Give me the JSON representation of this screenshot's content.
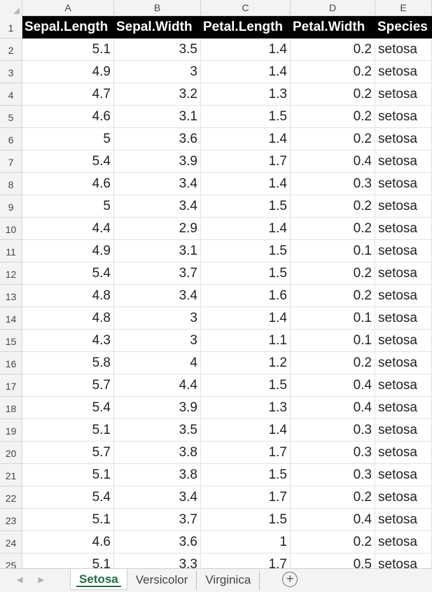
{
  "columns": [
    "A",
    "B",
    "C",
    "D",
    "E"
  ],
  "header": [
    "Sepal.Length",
    "Sepal.Width",
    "Petal.Length",
    "Petal.Width",
    "Species"
  ],
  "rows": [
    {
      "n": "2",
      "v": [
        "5.1",
        "3.5",
        "1.4",
        "0.2",
        "setosa"
      ]
    },
    {
      "n": "3",
      "v": [
        "4.9",
        "3",
        "1.4",
        "0.2",
        "setosa"
      ]
    },
    {
      "n": "4",
      "v": [
        "4.7",
        "3.2",
        "1.3",
        "0.2",
        "setosa"
      ]
    },
    {
      "n": "5",
      "v": [
        "4.6",
        "3.1",
        "1.5",
        "0.2",
        "setosa"
      ]
    },
    {
      "n": "6",
      "v": [
        "5",
        "3.6",
        "1.4",
        "0.2",
        "setosa"
      ]
    },
    {
      "n": "7",
      "v": [
        "5.4",
        "3.9",
        "1.7",
        "0.4",
        "setosa"
      ]
    },
    {
      "n": "8",
      "v": [
        "4.6",
        "3.4",
        "1.4",
        "0.3",
        "setosa"
      ]
    },
    {
      "n": "9",
      "v": [
        "5",
        "3.4",
        "1.5",
        "0.2",
        "setosa"
      ]
    },
    {
      "n": "10",
      "v": [
        "4.4",
        "2.9",
        "1.4",
        "0.2",
        "setosa"
      ]
    },
    {
      "n": "11",
      "v": [
        "4.9",
        "3.1",
        "1.5",
        "0.1",
        "setosa"
      ]
    },
    {
      "n": "12",
      "v": [
        "5.4",
        "3.7",
        "1.5",
        "0.2",
        "setosa"
      ]
    },
    {
      "n": "13",
      "v": [
        "4.8",
        "3.4",
        "1.6",
        "0.2",
        "setosa"
      ]
    },
    {
      "n": "14",
      "v": [
        "4.8",
        "3",
        "1.4",
        "0.1",
        "setosa"
      ]
    },
    {
      "n": "15",
      "v": [
        "4.3",
        "3",
        "1.1",
        "0.1",
        "setosa"
      ]
    },
    {
      "n": "16",
      "v": [
        "5.8",
        "4",
        "1.2",
        "0.2",
        "setosa"
      ]
    },
    {
      "n": "17",
      "v": [
        "5.7",
        "4.4",
        "1.5",
        "0.4",
        "setosa"
      ]
    },
    {
      "n": "18",
      "v": [
        "5.4",
        "3.9",
        "1.3",
        "0.4",
        "setosa"
      ]
    },
    {
      "n": "19",
      "v": [
        "5.1",
        "3.5",
        "1.4",
        "0.3",
        "setosa"
      ]
    },
    {
      "n": "20",
      "v": [
        "5.7",
        "3.8",
        "1.7",
        "0.3",
        "setosa"
      ]
    },
    {
      "n": "21",
      "v": [
        "5.1",
        "3.8",
        "1.5",
        "0.3",
        "setosa"
      ]
    },
    {
      "n": "22",
      "v": [
        "5.4",
        "3.4",
        "1.7",
        "0.2",
        "setosa"
      ]
    },
    {
      "n": "23",
      "v": [
        "5.1",
        "3.7",
        "1.5",
        "0.4",
        "setosa"
      ]
    },
    {
      "n": "24",
      "v": [
        "4.6",
        "3.6",
        "1",
        "0.2",
        "setosa"
      ]
    },
    {
      "n": "25",
      "v": [
        "5.1",
        "3.3",
        "1.7",
        "0.5",
        "setosa"
      ]
    }
  ],
  "tabs": {
    "nav_prev_icon": "triangle-left",
    "nav_next_icon": "triangle-right",
    "items": [
      "Setosa",
      "Versicolor",
      "Virginica"
    ],
    "active": "Setosa",
    "add_icon": "plus-circle"
  },
  "colors": {
    "header_bg": "#000000",
    "header_text": "#ffffff",
    "active_tab": "#1e6e42"
  }
}
